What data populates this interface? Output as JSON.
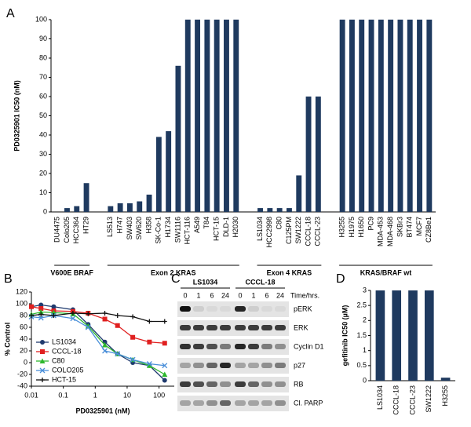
{
  "chart_data": [
    {
      "type": "bar",
      "panel_label": "A",
      "y_label": "PD0325901 IC50 (nM)",
      "ylim": [
        0,
        100
      ],
      "yticks": [
        0,
        10,
        20,
        30,
        40,
        50,
        60,
        70,
        80,
        90,
        100
      ],
      "color": "#1f3a5f",
      "groups": [
        {
          "name": "V600E BRAF",
          "categories": [
            "DU4475",
            "Colo205",
            "HCC364",
            "HT29"
          ],
          "values": [
            0,
            2,
            3,
            15
          ]
        },
        {
          "name": "Exon 2 KRAS",
          "categories": [
            "LS513",
            "H747",
            "SW403",
            "SW620",
            "H358",
            "SK-Co-1",
            "H1734",
            "SW1116",
            "HCT-116",
            "A549",
            "T84",
            "HCT-15",
            "DLD-1",
            "H2030"
          ],
          "values": [
            3,
            4.5,
            4.5,
            5.5,
            9,
            39,
            42,
            76,
            100,
            100,
            100,
            100,
            100,
            100
          ]
        },
        {
          "name": "Exon 4 KRAS",
          "categories": [
            "LS1034",
            "HCC2998",
            "C80",
            "C125PM",
            "SW1222",
            "CCCL-18",
            "CCCL-23"
          ],
          "values": [
            2,
            2,
            2,
            2,
            19,
            60,
            60
          ]
        },
        {
          "name": "KRAS/BRAF wt",
          "categories": [
            "H3255",
            "H1975",
            "H1650",
            "PC9",
            "MDA-453",
            "MDA-468",
            "SKBr3",
            "BT474",
            "MCF7",
            "CZ8Be1"
          ],
          "values": [
            100,
            100,
            100,
            100,
            100,
            100,
            100,
            100,
            100,
            100
          ]
        }
      ]
    },
    {
      "type": "line",
      "panel_label": "B",
      "x_label": "PD0325901  (nM)",
      "y_label": "% Control",
      "xscale": "log",
      "xlim": [
        0.01,
        300
      ],
      "xticks": [
        0.01,
        0.1,
        1,
        10,
        100
      ],
      "ylim": [
        -40,
        120
      ],
      "yticks": [
        -40,
        -20,
        0,
        20,
        40,
        60,
        80,
        100,
        120
      ],
      "legend": "lower left",
      "x": [
        0.01,
        0.02,
        0.05,
        0.2,
        0.6,
        2,
        5,
        15,
        50,
        150
      ],
      "series": [
        {
          "name": "LS1034",
          "color": "#1f3a6e",
          "marker": "circle",
          "values": [
            95,
            98,
            95,
            90,
            65,
            35,
            15,
            0,
            -5,
            -30
          ]
        },
        {
          "name": "CCCL-18",
          "color": "#e02020",
          "marker": "square",
          "values": [
            95,
            92,
            88,
            87,
            84,
            74,
            63,
            43,
            35,
            33
          ]
        },
        {
          "name": "C80",
          "color": "#2eb82e",
          "marker": "triangle",
          "values": [
            82,
            86,
            85,
            83,
            62,
            30,
            15,
            5,
            -5,
            -20
          ]
        },
        {
          "name": "COLO205",
          "color": "#4a8fd9",
          "marker": "x",
          "values": [
            78,
            76,
            80,
            75,
            60,
            20,
            15,
            5,
            -2,
            -5
          ]
        },
        {
          "name": "HCT-15",
          "color": "#111111",
          "marker": "plus",
          "values": [
            80,
            82,
            80,
            84,
            83,
            84,
            80,
            78,
            70,
            70
          ]
        }
      ]
    },
    {
      "type": "bar",
      "panel_label": "D",
      "y_label": "gefitinib IC50 (µM)",
      "ylim": [
        0,
        3
      ],
      "yticks": [
        0,
        0.5,
        1,
        1.5,
        2,
        2.5,
        3
      ],
      "color": "#1f3a5f",
      "categories": [
        "LS1034",
        "CCCL-18",
        "CCCL-23",
        "SW1222",
        "H3255"
      ],
      "values": [
        3,
        3,
        3,
        3,
        0.1
      ]
    }
  ],
  "blot": {
    "panel_label": "C",
    "time_label": "Time/hrs.",
    "groups": [
      "LS1034",
      "CCCL-18"
    ],
    "times": [
      "0",
      "1",
      "6",
      "24"
    ],
    "rows": [
      "pERK",
      "ERK",
      "Cyclin D1",
      "p27",
      "RB",
      "Cl. PARP"
    ]
  }
}
